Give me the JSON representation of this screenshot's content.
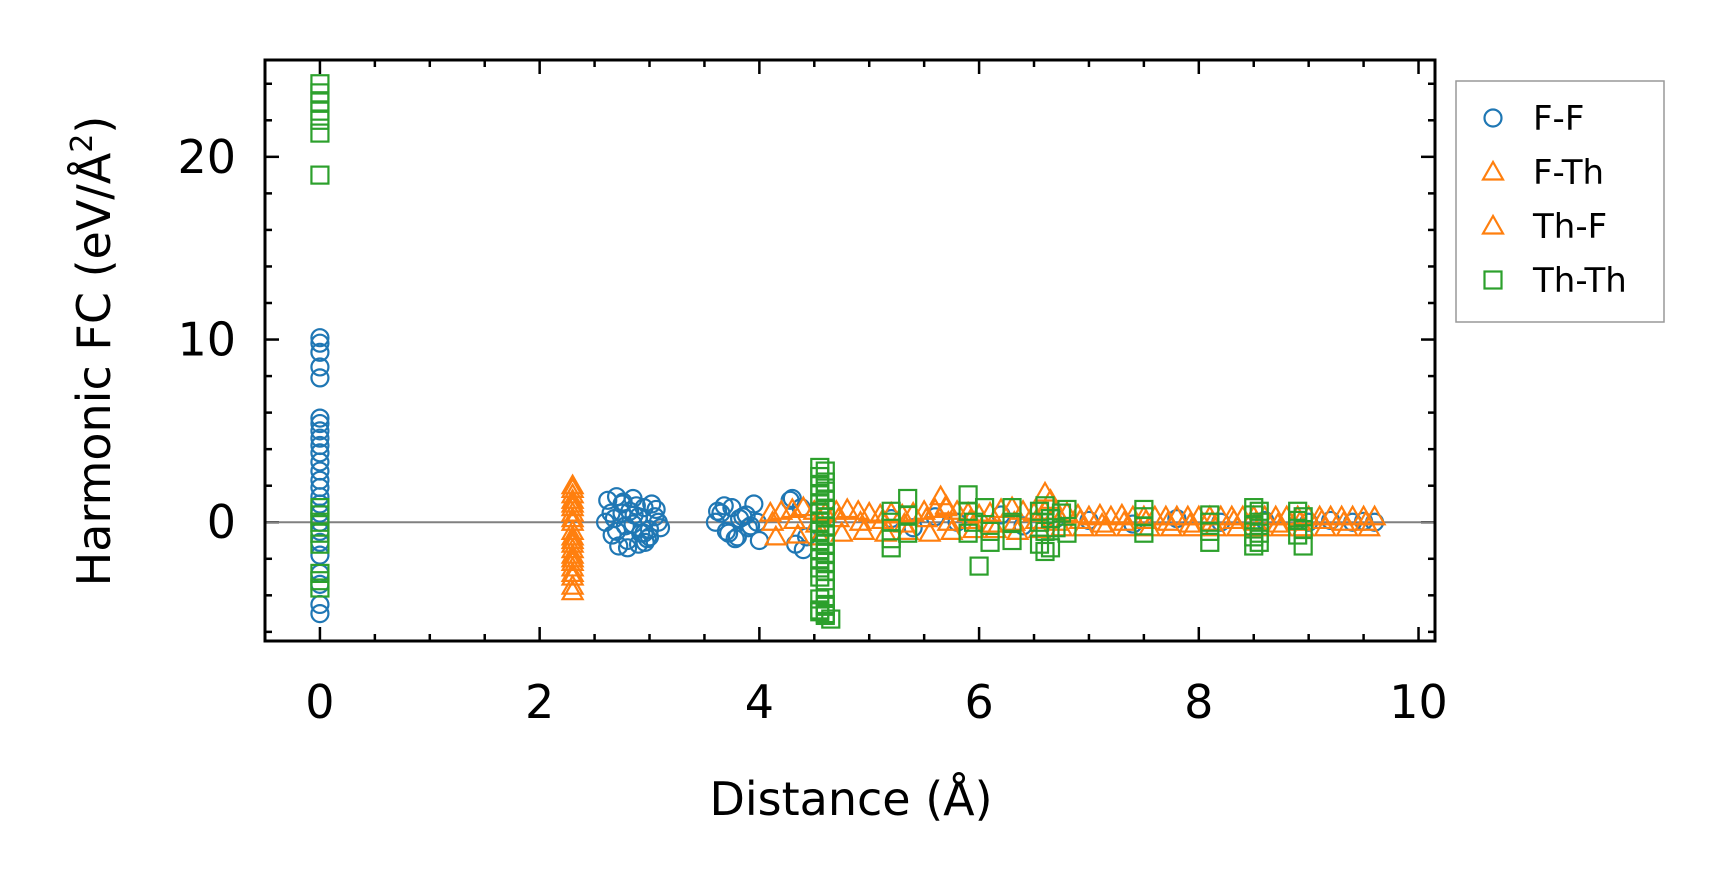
{
  "chart_data": {
    "type": "scatter",
    "xlabel": "Distance (Å)",
    "ylabel_main": "Harmonic FC (eV/Å",
    "ylabel_sup": "2",
    "ylabel_close": ")",
    "xlim": [
      -0.5,
      10.15
    ],
    "ylim": [
      -6.5,
      25.3
    ],
    "x_ticks": [
      0,
      2,
      4,
      6,
      8,
      10
    ],
    "x_tick_labels": [
      "0",
      "2",
      "4",
      "6",
      "8",
      "10"
    ],
    "y_ticks": [
      0,
      10,
      20
    ],
    "y_tick_labels": [
      "0",
      "10",
      "20"
    ],
    "zero_line": 0,
    "legend_position": "outside-right-top",
    "series": [
      {
        "name": "F-F",
        "marker": "circle",
        "color": "#1f77b4",
        "x": [
          0,
          0,
          0,
          0,
          0,
          0,
          0,
          0,
          0,
          0,
          0,
          0,
          0,
          0,
          0,
          0,
          0,
          0,
          0,
          0,
          0,
          0,
          0,
          0,
          0,
          0,
          2.6,
          2.65,
          2.7,
          2.75,
          2.8,
          2.85,
          2.9,
          2.95,
          3.0,
          3.05,
          3.1,
          2.62,
          2.72,
          2.82,
          2.92,
          3.02,
          2.68,
          2.78,
          2.88,
          2.98,
          3.08,
          2.66,
          2.76,
          2.86,
          2.96,
          3.06,
          2.7,
          2.8,
          2.9,
          3.0,
          2.75,
          2.85,
          2.95,
          3.6,
          3.65,
          3.7,
          3.75,
          3.8,
          3.85,
          3.9,
          3.95,
          4.0,
          3.62,
          3.72,
          3.82,
          3.92,
          3.68,
          3.78,
          3.88,
          3.98,
          4.28,
          4.33,
          4.38,
          4.43,
          4.3,
          4.4,
          5.2,
          5.4,
          5.6,
          5.8,
          6.2,
          6.4,
          6.7,
          7.0,
          7.4,
          7.8,
          8.2,
          8.6,
          9.0,
          9.2,
          9.4,
          9.5,
          9.6
        ],
        "y": [
          10.1,
          9.8,
          9.3,
          8.5,
          7.9,
          5.7,
          5.4,
          5.0,
          4.6,
          4.2,
          3.8,
          3.3,
          2.8,
          2.3,
          1.9,
          1.4,
          1.0,
          0.5,
          0.0,
          -0.5,
          -1.1,
          -1.8,
          -2.8,
          -3.4,
          -4.5,
          -5.0,
          0.0,
          0.5,
          -0.5,
          1.0,
          -1.0,
          1.3,
          -1.2,
          0.8,
          -0.8,
          0.3,
          -0.3,
          1.2,
          -1.3,
          0.6,
          -0.6,
          1.0,
          0.2,
          -0.2,
          0.9,
          -0.9,
          0.0,
          -0.7,
          1.1,
          0.4,
          -1.1,
          0.7,
          1.4,
          -1.4,
          0.3,
          -0.4,
          0.5,
          -0.1,
          -0.6,
          0.0,
          0.5,
          -0.5,
          0.8,
          -0.8,
          0.3,
          -0.3,
          1.0,
          -1.0,
          0.6,
          -0.6,
          0.2,
          -0.2,
          0.9,
          -0.9,
          0.4,
          0.0,
          1.2,
          -1.2,
          0.8,
          -0.8,
          1.3,
          -1.5,
          0.2,
          -0.3,
          0.3,
          0.0,
          0.4,
          -0.2,
          0.2,
          0.1,
          -0.1,
          0.2,
          0.0,
          0.1,
          0.0,
          0.1,
          0.0,
          0.05,
          0.0
        ]
      },
      {
        "name": "F-Th",
        "marker": "triangle",
        "color": "#ff7f0e",
        "x": [
          2.3,
          2.3,
          2.3,
          2.3,
          2.3,
          2.3,
          2.3,
          2.3,
          2.3,
          2.3,
          2.3,
          2.3,
          2.3,
          2.3,
          2.3,
          2.3,
          2.3,
          4.1,
          4.2,
          4.3,
          4.4,
          4.5,
          4.6,
          4.7,
          4.8,
          4.9,
          5.0,
          5.1,
          5.2,
          5.3,
          5.4,
          5.5,
          5.6,
          5.7,
          5.8,
          5.9,
          6.0,
          6.1,
          6.2,
          6.3,
          6.4,
          6.5,
          6.6,
          6.7,
          6.8,
          6.9,
          7.0,
          7.1,
          7.2,
          7.3,
          7.4,
          7.5,
          7.6,
          7.7,
          7.8,
          7.9,
          8.0,
          8.1,
          8.2,
          8.3,
          8.4,
          8.5,
          8.6,
          8.7,
          8.8,
          8.9,
          9.0,
          9.1,
          9.2,
          9.3,
          9.4,
          9.5,
          9.6,
          4.15,
          4.35,
          4.55,
          4.75,
          4.95,
          5.15,
          5.35,
          5.55,
          5.75,
          5.95,
          6.15,
          6.35,
          6.55,
          6.75,
          6.95,
          7.15,
          7.35,
          7.55,
          7.75,
          7.95,
          8.15,
          8.35,
          8.55,
          8.75,
          8.95,
          9.15,
          9.35,
          9.55,
          5.65,
          5.7,
          6.6,
          6.65
        ],
        "y": [
          2.0,
          1.5,
          1.0,
          0.5,
          0.0,
          -0.5,
          -1.0,
          -1.5,
          -2.0,
          -2.5,
          -3.0,
          -3.5,
          1.8,
          -3.8,
          0.8,
          -1.2,
          -2.8,
          0.5,
          0.6,
          0.7,
          0.8,
          0.6,
          0.5,
          0.6,
          0.7,
          0.6,
          0.5,
          0.4,
          0.5,
          0.4,
          0.5,
          0.6,
          0.7,
          0.8,
          0.6,
          0.5,
          0.4,
          0.5,
          0.7,
          0.8,
          0.6,
          0.5,
          0.6,
          0.6,
          0.5,
          0.4,
          0.3,
          0.4,
          0.3,
          0.4,
          0.3,
          0.3,
          0.3,
          0.3,
          0.3,
          0.3,
          0.3,
          0.3,
          0.3,
          0.3,
          0.3,
          0.3,
          0.3,
          0.3,
          0.3,
          0.3,
          0.3,
          0.3,
          0.3,
          0.3,
          0.3,
          0.3,
          0.3,
          -0.8,
          -0.7,
          -0.8,
          -0.6,
          -0.5,
          -0.6,
          -0.5,
          -0.6,
          -0.5,
          -0.4,
          -0.4,
          -0.5,
          -0.4,
          -0.3,
          -0.3,
          -0.3,
          -0.3,
          -0.3,
          -0.3,
          -0.3,
          -0.3,
          -0.3,
          -0.3,
          -0.3,
          -0.3,
          -0.3,
          -0.3,
          -0.3,
          1.4,
          0.9,
          1.6,
          1.2
        ]
      },
      {
        "name": "Th-F",
        "marker": "triangle",
        "color": "#ff7f0e",
        "x": [
          2.3,
          2.3,
          2.3,
          2.3,
          2.3,
          4.12,
          4.32,
          4.52,
          4.72,
          4.92,
          5.12,
          5.32,
          5.52,
          5.72,
          5.92,
          6.12,
          6.32,
          6.52,
          6.72,
          6.92,
          7.12,
          7.32,
          7.52,
          7.72,
          7.92,
          8.12,
          8.32,
          8.52,
          8.72,
          8.92,
          9.12,
          9.32,
          9.52
        ],
        "y": [
          1.2,
          -0.8,
          -1.8,
          -2.2,
          0.2,
          0.0,
          0.1,
          -0.1,
          0.2,
          0.0,
          0.1,
          -0.1,
          0.2,
          0.0,
          0.1,
          -0.1,
          0.0,
          0.1,
          0.0,
          0.1,
          -0.1,
          0.0,
          0.1,
          0.0,
          -0.1,
          0.0,
          0.1,
          0.0,
          -0.1,
          0.0,
          0.1,
          0.0,
          0.0
        ]
      },
      {
        "name": "Th-Th",
        "marker": "square",
        "color": "#2ca02c",
        "x": [
          0,
          0,
          0,
          0,
          0,
          0,
          0,
          0,
          0,
          0,
          0,
          0,
          0,
          0,
          0,
          4.55,
          4.55,
          4.55,
          4.55,
          4.55,
          4.55,
          4.55,
          4.55,
          4.55,
          4.55,
          4.55,
          4.55,
          4.55,
          4.55,
          4.55,
          4.6,
          4.6,
          4.6,
          4.6,
          4.6,
          4.6,
          4.6,
          4.6,
          4.6,
          4.6,
          4.6,
          4.6,
          4.6,
          4.6,
          4.6,
          4.6,
          4.6,
          4.55,
          4.6,
          4.65,
          5.2,
          5.2,
          5.2,
          5.2,
          5.35,
          5.35,
          5.35,
          5.9,
          5.9,
          5.9,
          5.95,
          6.0,
          6.05,
          6.1,
          6.1,
          6.3,
          6.3,
          6.3,
          6.55,
          6.55,
          6.55,
          6.6,
          6.6,
          6.6,
          6.65,
          6.65,
          6.7,
          6.75,
          6.8,
          6.8,
          7.5,
          7.5,
          7.5,
          7.5,
          8.1,
          8.1,
          8.1,
          8.1,
          8.5,
          8.5,
          8.5,
          8.5,
          8.5,
          8.55,
          8.55,
          8.55,
          8.55,
          8.9,
          8.9,
          8.9,
          8.95,
          8.95,
          8.95
        ],
        "y": [
          24.0,
          23.5,
          23.0,
          22.5,
          22.0,
          21.3,
          19.0,
          0.8,
          0.4,
          0.0,
          -0.6,
          -1.2,
          -3.2,
          -3.6,
          -2.8,
          3.0,
          2.5,
          2.0,
          1.5,
          1.0,
          0.5,
          0.0,
          -0.5,
          -1.0,
          -1.5,
          -2.0,
          -2.5,
          -3.0,
          -4.2,
          -4.8,
          2.8,
          2.2,
          1.7,
          1.2,
          0.7,
          0.3,
          -0.2,
          -0.7,
          -1.2,
          -1.7,
          -2.2,
          -2.7,
          -3.2,
          -3.6,
          -5.0,
          -5.1,
          -4.5,
          -4.9,
          -4.6,
          -5.3,
          0.6,
          0.0,
          -0.9,
          -1.4,
          1.3,
          0.4,
          -0.6,
          1.5,
          0.6,
          -0.6,
          0.0,
          -2.4,
          0.8,
          -0.5,
          -1.1,
          0.8,
          0.0,
          -1.0,
          0.6,
          0.0,
          -1.2,
          0.9,
          -0.5,
          -1.6,
          0.2,
          -1.4,
          -0.3,
          0.5,
          -0.6,
          0.7,
          0.7,
          0.3,
          -0.2,
          -0.6,
          0.4,
          0.0,
          -0.5,
          -1.1,
          0.8,
          0.4,
          -0.2,
          -0.8,
          -1.3,
          0.6,
          0.0,
          -0.6,
          -1.1,
          0.6,
          0.1,
          -0.7,
          0.3,
          -0.4,
          -1.3
        ]
      }
    ]
  }
}
